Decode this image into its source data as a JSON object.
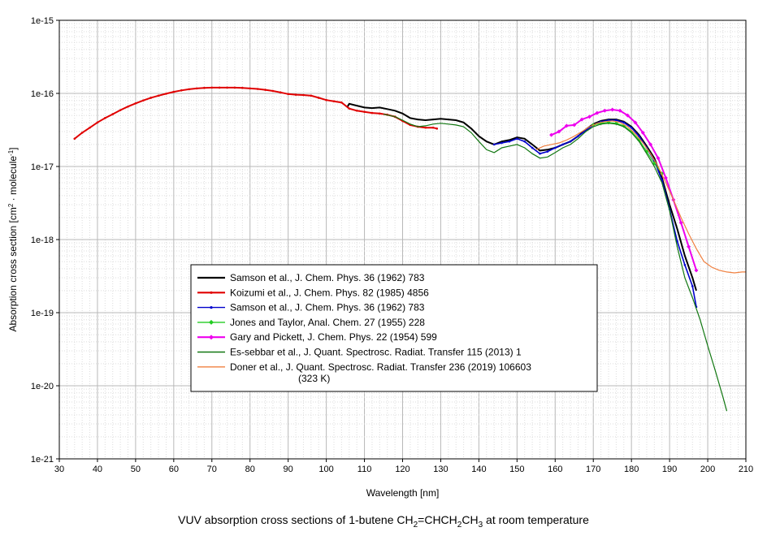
{
  "chart_data": {
    "type": "line",
    "title": "VUV absorption cross sections of 1-butene CH2=CHCH2CH3 at room temperature",
    "title_parts": [
      "VUV absorption cross sections of 1-butene CH",
      "2",
      "=CHCH",
      "2",
      "CH",
      "3",
      " at room temperature"
    ],
    "xlabel": "Wavelength [nm]",
    "ylabel": "Absorption cross section [cm2 · molecule-1]",
    "ylabel_parts": [
      "Absorption cross section [cm",
      "2",
      " · molecule",
      "-1",
      "]"
    ],
    "xlim": [
      30,
      210
    ],
    "ylim": [
      1e-21,
      1e-15
    ],
    "yscale": "log",
    "grid": true,
    "legend_position": "center",
    "x_ticks": [
      "30",
      "40",
      "50",
      "60",
      "70",
      "80",
      "90",
      "100",
      "110",
      "120",
      "130",
      "140",
      "150",
      "160",
      "170",
      "180",
      "190",
      "200",
      "210"
    ],
    "y_ticks": [
      "1e-21",
      "1e-20",
      "1e-19",
      "1e-18",
      "1e-17",
      "1e-16",
      "1e-15"
    ],
    "series": [
      {
        "name": "Samson et al., J. Chem. Phys. 36 (1962) 783",
        "color": "#000000",
        "marker": "none",
        "x": [
          105.5,
          106,
          108,
          110,
          112,
          114,
          116,
          118,
          120,
          122,
          124,
          126,
          128,
          130,
          132,
          134,
          136,
          138,
          140,
          142,
          144,
          146,
          148,
          150,
          152,
          154,
          156,
          158,
          160,
          162,
          164,
          166,
          168,
          170,
          172,
          174,
          176,
          178,
          180,
          182,
          184,
          186,
          188,
          190,
          192,
          194,
          196,
          197
        ],
        "y": [
          6.5e-17,
          7.2e-17,
          6.8e-17,
          6.4e-17,
          6.3e-17,
          6.4e-17,
          6.1e-17,
          5.8e-17,
          5.3e-17,
          4.6e-17,
          4.4e-17,
          4.3e-17,
          4.4e-17,
          4.5e-17,
          4.4e-17,
          4.3e-17,
          4e-17,
          3.3e-17,
          2.6e-17,
          2.2e-17,
          2e-17,
          2.2e-17,
          2.3e-17,
          2.5e-17,
          2.4e-17,
          2e-17,
          1.65e-17,
          1.7e-17,
          1.8e-17,
          2e-17,
          2.2e-17,
          2.6e-17,
          3.2e-17,
          3.8e-17,
          4.2e-17,
          4.4e-17,
          4.4e-17,
          4.1e-17,
          3.5e-17,
          2.7e-17,
          1.9e-17,
          1.3e-17,
          7e-18,
          3e-18,
          1.4e-18,
          6e-19,
          3e-19,
          2e-19
        ]
      },
      {
        "name": "Koizumi et al., J. Chem. Phys. 82 (1985) 4856",
        "color": "#e00000",
        "marker": "dot",
        "x": [
          34,
          36,
          38,
          40,
          42,
          44,
          46,
          48,
          50,
          52,
          54,
          56,
          58,
          60,
          62,
          64,
          66,
          68,
          70,
          72,
          74,
          76,
          78,
          80,
          82,
          84,
          86,
          88,
          90,
          92,
          94,
          96,
          98,
          100,
          102,
          104,
          106,
          108,
          110,
          112,
          114,
          116,
          118,
          120,
          122,
          124,
          126,
          128,
          129
        ],
        "y": [
          2.4e-17,
          2.9e-17,
          3.4e-17,
          4e-17,
          4.6e-17,
          5.2e-17,
          5.9e-17,
          6.6e-17,
          7.3e-17,
          8e-17,
          8.7e-17,
          9.3e-17,
          9.9e-17,
          1.05e-16,
          1.1e-16,
          1.14e-16,
          1.17e-16,
          1.19e-16,
          1.2e-16,
          1.2e-16,
          1.2e-16,
          1.2e-16,
          1.19e-16,
          1.17e-16,
          1.15e-16,
          1.12e-16,
          1.08e-16,
          1.03e-16,
          9.8e-17,
          9.6e-17,
          9.5e-17,
          9.3e-17,
          8.7e-17,
          8.1e-17,
          7.8e-17,
          7.5e-17,
          6.2e-17,
          5.8e-17,
          5.6e-17,
          5.4e-17,
          5.3e-17,
          5.1e-17,
          4.8e-17,
          4.2e-17,
          3.7e-17,
          3.5e-17,
          3.4e-17,
          3.4e-17,
          3.3e-17
        ]
      },
      {
        "name": "Samson et al., J. Chem. Phys. 36 (1962) 783",
        "color": "#0000cc",
        "marker": "dot",
        "x": [
          144,
          146,
          148,
          150,
          152,
          154,
          156,
          158,
          160,
          162,
          164,
          166,
          168,
          170,
          172,
          174,
          176,
          178,
          180,
          182,
          184,
          186,
          188,
          190,
          192,
          194,
          196,
          197
        ],
        "y": [
          2e-17,
          2.1e-17,
          2.2e-17,
          2.4e-17,
          2.2e-17,
          1.8e-17,
          1.5e-17,
          1.6e-17,
          1.8e-17,
          2e-17,
          2.2e-17,
          2.6e-17,
          3.1e-17,
          3.7e-17,
          4.1e-17,
          4.3e-17,
          4.3e-17,
          4e-17,
          3.4e-17,
          2.6e-17,
          1.8e-17,
          1.2e-17,
          6.5e-18,
          2.6e-18,
          9.5e-19,
          4.5e-19,
          2.3e-19,
          1.2e-19
        ]
      },
      {
        "name": "Jones and Taylor, Anal. Chem. 27 (1955) 228",
        "color": "#22cc22",
        "marker": "diamond",
        "x": [
          170,
          172,
          174,
          176,
          178,
          180,
          182,
          184,
          186,
          188
        ],
        "y": [
          3.7e-17,
          3.9e-17,
          4e-17,
          3.9e-17,
          3.6e-17,
          3e-17,
          2.3e-17,
          1.6e-17,
          1.1e-17,
          8e-18
        ]
      },
      {
        "name": "Gary and Pickett, J. Chem. Phys. 22 (1954) 599",
        "color": "#ee00ee",
        "marker": "diamond",
        "x": [
          159,
          161,
          163,
          165,
          167,
          169,
          171,
          173,
          175,
          177,
          179,
          181,
          183,
          185,
          187,
          189,
          191,
          193,
          195,
          197
        ],
        "y": [
          2.7e-17,
          3e-17,
          3.6e-17,
          3.7e-17,
          4.4e-17,
          4.8e-17,
          5.4e-17,
          5.8e-17,
          6e-17,
          5.8e-17,
          5e-17,
          4e-17,
          2.9e-17,
          2e-17,
          1.3e-17,
          7e-18,
          3.5e-18,
          1.7e-18,
          8e-19,
          3.8e-19
        ]
      },
      {
        "name": "Es-sebbar et al., J. Quant. Spectrosc. Radiat. Transfer 115 (2013) 1",
        "color": "#117711",
        "marker": "none",
        "x": [
          115,
          118,
          120,
          122,
          124,
          126,
          128,
          130,
          132,
          134,
          136,
          138,
          140,
          142,
          144,
          146,
          148,
          150,
          152,
          154,
          156,
          158,
          160,
          162,
          164,
          166,
          168,
          170,
          172,
          174,
          176,
          178,
          180,
          182,
          184,
          186,
          188,
          190,
          192,
          194,
          196,
          198,
          200,
          202,
          204,
          205
        ],
        "y": [
          5.2e-17,
          4.8e-17,
          4.3e-17,
          3.8e-17,
          3.5e-17,
          3.6e-17,
          3.8e-17,
          3.9e-17,
          3.8e-17,
          3.7e-17,
          3.5e-17,
          2.9e-17,
          2.2e-17,
          1.7e-17,
          1.55e-17,
          1.8e-17,
          1.9e-17,
          2e-17,
          1.8e-17,
          1.5e-17,
          1.3e-17,
          1.35e-17,
          1.55e-17,
          1.8e-17,
          2e-17,
          2.4e-17,
          3e-17,
          3.5e-17,
          3.8e-17,
          3.9e-17,
          3.8e-17,
          3.5e-17,
          2.9e-17,
          2.2e-17,
          1.5e-17,
          1e-17,
          6e-18,
          2.5e-18,
          8e-19,
          3e-19,
          1.6e-19,
          8e-20,
          3.5e-20,
          1.6e-20,
          7e-21,
          4.5e-21
        ]
      },
      {
        "name": "Doner et al., J. Quant. Spectrosc. Radiat. Transfer 236 (2019) 106603",
        "name_line2": "(323 K)",
        "color": "#f08040",
        "marker": "none",
        "x": [
          155,
          157,
          159,
          161,
          163,
          165,
          167,
          169,
          171,
          173,
          175,
          177,
          179,
          181,
          183,
          185,
          187,
          189,
          191,
          193,
          195,
          197,
          199,
          201,
          203,
          205,
          207,
          209,
          210
        ],
        "y": [
          1.7e-17,
          1.9e-17,
          2e-17,
          2.1e-17,
          2.3e-17,
          2.6e-17,
          3e-17,
          3.5e-17,
          3.9e-17,
          4.1e-17,
          4.2e-17,
          4e-17,
          3.5e-17,
          2.8e-17,
          2.1e-17,
          1.5e-17,
          1e-17,
          6e-18,
          3.5e-18,
          2e-18,
          1.2e-18,
          7.5e-19,
          5e-19,
          4.2e-19,
          3.8e-19,
          3.6e-19,
          3.5e-19,
          3.6e-19,
          3.6e-19
        ]
      }
    ]
  }
}
